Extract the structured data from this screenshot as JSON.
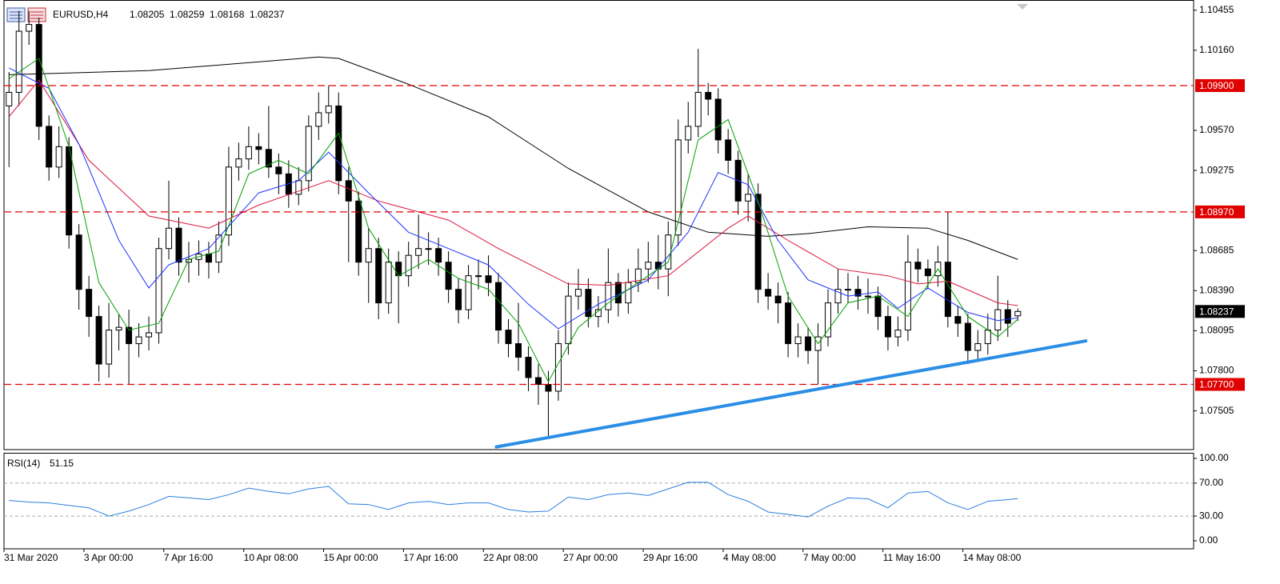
{
  "chart_data": [
    {
      "type": "candlestick",
      "title": "EURUSD,H4",
      "open": [
        1.0975,
        1.0985,
        1.103,
        1.1035,
        1.096,
        1.093,
        1.0945,
        1.088,
        1.084,
        1.082,
        1.0785,
        1.081,
        1.0812,
        1.08,
        1.0805,
        1.0808,
        1.087,
        1.0885,
        1.086,
        1.0862,
        1.0866,
        1.086,
        1.088,
        1.093,
        1.0936,
        1.0945,
        1.0943,
        1.093,
        1.0925,
        1.091,
        1.092,
        1.096,
        1.097,
        1.0975,
        1.092,
        1.0905,
        1.086,
        1.087,
        1.083,
        1.086,
        1.085,
        1.0865,
        1.087,
        1.087,
        1.086,
        1.084,
        1.0825,
        1.085,
        1.085,
        1.0845,
        1.081,
        1.08,
        1.079,
        1.0775,
        1.077,
        1.0765,
        1.08,
        1.0835,
        1.084,
        1.082,
        1.0825,
        1.0845,
        1.083,
        1.0845,
        1.0855,
        1.086,
        1.0855,
        1.088,
        1.095,
        1.096,
        1.0985,
        1.098,
        1.095,
        1.0935,
        1.0905,
        1.091,
        1.084,
        1.0835,
        1.083,
        1.08,
        1.0805,
        1.0795,
        1.0805,
        1.083,
        1.084,
        1.084,
        1.0835,
        1.0835,
        1.082,
        1.0805,
        1.081,
        1.086,
        1.0855,
        1.085,
        1.086,
        1.082,
        1.0815,
        1.0795,
        1.08,
        1.081,
        1.0825,
        1.08205
      ],
      "high": [
        1.1,
        1.1045,
        1.1045,
        1.104,
        1.0968,
        1.096,
        1.0952,
        1.0888,
        1.085,
        1.0828,
        1.083,
        1.0822,
        1.0825,
        1.0815,
        1.082,
        1.0878,
        1.092,
        1.0893,
        1.0875,
        1.0876,
        1.0875,
        1.089,
        1.0945,
        1.0948,
        1.096,
        1.0955,
        1.0975,
        1.094,
        1.0935,
        1.093,
        1.0968,
        1.0985,
        1.099,
        1.0985,
        1.093,
        1.0912,
        1.0885,
        1.0878,
        1.087,
        1.0868,
        1.0875,
        1.0895,
        1.0882,
        1.0878,
        1.0868,
        1.0848,
        1.0858,
        1.0862,
        1.0865,
        1.0852,
        1.0818,
        1.083,
        1.0798,
        1.0785,
        1.078,
        1.081,
        1.0845,
        1.0855,
        1.0848,
        1.0835,
        1.087,
        1.0852,
        1.0855,
        1.087,
        1.0875,
        1.088,
        1.089,
        1.0965,
        1.0978,
        1.1017,
        1.0992,
        1.0988,
        1.0958,
        1.0942,
        1.0925,
        1.0918,
        1.0852,
        1.0845,
        1.0838,
        1.0815,
        1.0812,
        1.0815,
        1.084,
        1.0855,
        1.0852,
        1.085,
        1.0848,
        1.0842,
        1.0828,
        1.082,
        1.088,
        1.087,
        1.0862,
        1.0872,
        1.0897,
        1.0828,
        1.0822,
        1.081,
        1.0822,
        1.085,
        1.0832,
        1.08259
      ],
      "low": [
        1.093,
        1.0975,
        1.102,
        1.095,
        1.092,
        1.0922,
        1.087,
        1.0825,
        1.0805,
        1.0772,
        1.0775,
        1.0795,
        1.077,
        1.079,
        1.0795,
        1.08,
        1.0862,
        1.085,
        1.0845,
        1.085,
        1.0848,
        1.0852,
        1.0872,
        1.092,
        1.0928,
        1.0932,
        1.0922,
        1.091,
        1.09,
        1.0902,
        1.0912,
        1.095,
        1.0962,
        1.091,
        1.086,
        1.085,
        1.083,
        1.0818,
        1.0822,
        1.0815,
        1.0842,
        1.0855,
        1.0858,
        1.085,
        1.083,
        1.0815,
        1.0818,
        1.084,
        1.0835,
        1.08,
        1.079,
        1.078,
        1.0765,
        1.0755,
        1.0732,
        1.0758,
        1.0792,
        1.0825,
        1.0812,
        1.0812,
        1.0815,
        1.082,
        1.0822,
        1.0838,
        1.0845,
        1.084,
        1.0835,
        1.0872,
        1.094,
        1.0952,
        1.0968,
        1.094,
        1.0925,
        1.0895,
        1.089,
        1.083,
        1.0825,
        1.0815,
        1.079,
        1.079,
        1.0785,
        1.077,
        1.0798,
        1.0822,
        1.083,
        1.0825,
        1.0822,
        1.081,
        1.0795,
        1.0798,
        1.0802,
        1.0845,
        1.084,
        1.0842,
        1.0812,
        1.0805,
        1.0785,
        1.0788,
        1.0792,
        1.0802,
        1.0805,
        1.08168
      ],
      "close": [
        1.0985,
        1.103,
        1.1035,
        1.096,
        1.093,
        1.0945,
        1.088,
        1.084,
        1.082,
        1.0785,
        1.081,
        1.0812,
        1.08,
        1.0805,
        1.0808,
        1.087,
        1.0885,
        1.086,
        1.0862,
        1.0866,
        1.086,
        1.088,
        1.093,
        1.0936,
        1.0945,
        1.0943,
        1.093,
        1.0925,
        1.091,
        1.092,
        1.096,
        1.097,
        1.0975,
        1.092,
        1.0905,
        1.086,
        1.087,
        1.083,
        1.086,
        1.085,
        1.0865,
        1.087,
        1.087,
        1.086,
        1.084,
        1.0825,
        1.085,
        1.085,
        1.0845,
        1.081,
        1.08,
        1.079,
        1.0775,
        1.077,
        1.0765,
        1.08,
        1.0835,
        1.084,
        1.082,
        1.0825,
        1.0845,
        1.083,
        1.0845,
        1.0855,
        1.086,
        1.0855,
        1.088,
        1.095,
        1.096,
        1.0985,
        1.098,
        1.095,
        1.0935,
        1.0905,
        1.091,
        1.084,
        1.0835,
        1.083,
        1.08,
        1.0805,
        1.0795,
        1.0805,
        1.083,
        1.084,
        1.084,
        1.0835,
        1.0835,
        1.082,
        1.0805,
        1.081,
        1.086,
        1.0855,
        1.085,
        1.086,
        1.082,
        1.0815,
        1.0795,
        1.08,
        1.081,
        1.0825,
        1.0815,
        1.08237
      ],
      "up_color": "#ffffff",
      "down_color": "#000000",
      "series": [
        {
          "color": "#000000",
          "x": [
            0,
            14,
            31,
            33,
            40,
            48,
            56,
            64,
            70,
            76,
            80,
            86,
            92,
            96,
            101
          ],
          "values": [
            1.0998,
            1.1001,
            1.1011,
            1.101,
            1.0991,
            1.0967,
            1.0929,
            1.0897,
            1.0882,
            1.0879,
            1.0881,
            1.0886,
            1.0885,
            1.0876,
            1.0862
          ]
        },
        {
          "color": "#dc143c",
          "x": [
            0,
            3,
            8,
            14,
            20,
            25,
            32,
            37,
            44,
            49,
            56,
            60,
            66,
            72,
            74,
            78,
            83,
            88,
            91,
            94,
            99,
            101
          ],
          "values": [
            1.0967,
            1.0994,
            1.0935,
            1.0894,
            1.0885,
            1.0902,
            1.092,
            1.0905,
            1.0891,
            1.087,
            1.0844,
            1.0843,
            1.085,
            1.0885,
            1.0894,
            1.0876,
            1.0855,
            1.085,
            1.0844,
            1.0846,
            1.083,
            1.0828
          ]
        },
        {
          "color": "#1e32ff",
          "x": [
            0,
            4,
            7,
            11,
            14,
            16,
            20,
            25,
            29,
            32,
            36,
            40,
            44,
            48,
            52,
            55,
            59,
            64,
            68,
            71,
            74,
            77,
            80,
            84,
            87,
            89,
            92,
            96,
            99,
            101
          ],
          "values": [
            1.1003,
            1.0988,
            1.0947,
            1.0876,
            1.0841,
            1.0858,
            1.087,
            1.0911,
            1.092,
            1.0941,
            1.0911,
            1.0882,
            1.087,
            1.0858,
            1.0829,
            1.0811,
            1.0829,
            1.0847,
            1.0882,
            1.0926,
            1.0917,
            1.0876,
            1.0847,
            1.0835,
            1.0838,
            1.0826,
            1.0841,
            1.0823,
            1.0817,
            1.0819
          ]
        },
        {
          "color": "#00a000",
          "x": [
            0,
            3,
            6,
            9,
            12,
            15,
            18,
            21,
            24,
            27,
            30,
            33,
            36,
            39,
            42,
            45,
            48,
            51,
            54,
            57,
            60,
            63,
            66,
            69,
            72,
            75,
            78,
            81,
            84,
            87,
            90,
            93,
            96,
            99,
            101
          ],
          "values": [
            1.0995,
            1.101,
            1.0945,
            1.0845,
            1.081,
            1.0815,
            1.0862,
            1.0868,
            1.0925,
            1.0935,
            1.0925,
            1.0955,
            1.0885,
            1.085,
            1.0862,
            1.0848,
            1.084,
            1.0815,
            1.0772,
            1.0812,
            1.083,
            1.0845,
            1.086,
            1.095,
            1.0965,
            1.0905,
            1.0835,
            1.08,
            1.083,
            1.0835,
            1.082,
            1.0855,
            1.082,
            1.0805,
            1.0818
          ]
        }
      ],
      "trendline": {
        "color": "#2a8ee6",
        "x": [
          48.8,
          107.8
        ],
        "values": [
          1.0724,
          1.0802
        ]
      },
      "levels": [
        {
          "value": 1.099,
          "label": "1.09900"
        },
        {
          "value": 1.0897,
          "label": "1.08970"
        },
        {
          "value": 1.077,
          "label": "1.07700"
        }
      ],
      "level_color": "#e00000",
      "xlim": [
        -0.5,
        118.6
      ],
      "xticks": [
        {
          "value": -0.5,
          "label": "31 Mar 2020"
        },
        {
          "value": 7.5,
          "label": "3 Apr 00:00"
        },
        {
          "value": 15.5,
          "label": "7 Apr 16:00"
        },
        {
          "value": 23.5,
          "label": "10 Apr 08:00"
        },
        {
          "value": 31.5,
          "label": "15 Apr 00:00"
        },
        {
          "value": 39.5,
          "label": "17 Apr 16:00"
        },
        {
          "value": 47.5,
          "label": "22 Apr 08:00"
        },
        {
          "value": 55.5,
          "label": "27 Apr 00:00"
        },
        {
          "value": 63.5,
          "label": "29 Apr 16:00"
        },
        {
          "value": 71.5,
          "label": "4 May 08:00"
        },
        {
          "value": 79.5,
          "label": "7 May 00:00"
        },
        {
          "value": 87.5,
          "label": "11 May 16:00"
        },
        {
          "value": 95.5,
          "label": "14 May 08:00"
        }
      ],
      "ylim": [
        1.0722,
        1.1053
      ],
      "yticks": [
        1.10455,
        {
          "value": 1.1016,
          "label": "1.10160"
        },
        {
          "value": 1.0957,
          "label": "1.09570"
        },
        1.09275,
        1.08685,
        {
          "value": 1.0839,
          "label": "1.08390"
        },
        1.08095,
        {
          "value": 1.078,
          "label": "1.07800"
        },
        1.07505
      ]
    },
    {
      "type": "line",
      "title": "RSI(14)",
      "color": "#2a7fe0",
      "x": [
        0,
        2,
        4,
        6,
        8,
        10,
        12,
        14,
        16,
        18,
        20,
        22,
        24,
        26,
        28,
        30,
        32,
        34,
        36,
        38,
        40,
        42,
        44,
        46,
        48,
        50,
        52,
        54,
        56,
        58,
        60,
        62,
        64,
        66,
        68,
        70,
        72,
        74,
        76,
        78,
        80,
        82,
        84,
        86,
        88,
        90,
        92,
        94,
        96,
        98,
        100,
        101
      ],
      "values": [
        49,
        47,
        46,
        43,
        40,
        30,
        36,
        44,
        54,
        52,
        50,
        56,
        64,
        60,
        57,
        63,
        66,
        45,
        44,
        38,
        46,
        48,
        44,
        46,
        46,
        38,
        35,
        36,
        53,
        50,
        56,
        58,
        55,
        63,
        71,
        71,
        56,
        48,
        35,
        32,
        29,
        42,
        52,
        51,
        40,
        58,
        60,
        46,
        38,
        48,
        50,
        51.15
      ],
      "xlim": [
        -0.5,
        118.6
      ],
      "ylim": [
        -9.7,
        106.8
      ],
      "yticks": [
        {
          "value": 100,
          "label": "100.00"
        },
        {
          "value": 70,
          "label": "70.00"
        },
        {
          "value": 30,
          "label": "30.00"
        },
        {
          "value": 0,
          "label": "0.00"
        }
      ],
      "levels": [
        70,
        30
      ]
    }
  ]
}
